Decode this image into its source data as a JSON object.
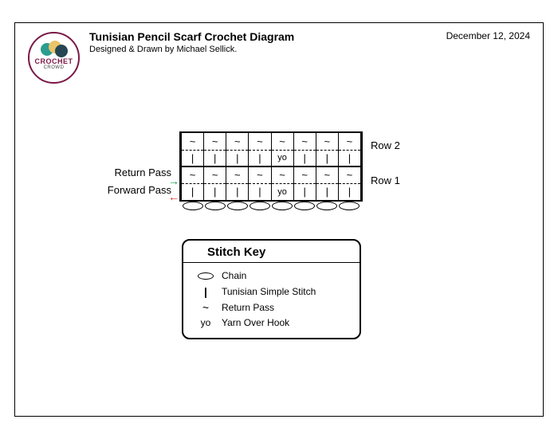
{
  "header": {
    "title": "Tunisian Pencil Scarf Crochet Diagram",
    "subtitle": "Designed & Drawn by Michael Sellick.",
    "date": "December 12, 2024"
  },
  "logo": {
    "text_top": "CROCHET",
    "text_bottom": "CROWD",
    "colors": {
      "ring": "#7a1846",
      "teal": "#2a9d8f",
      "yellow": "#e9c46a",
      "navy": "#264653"
    }
  },
  "diagram": {
    "columns": 8,
    "rows": [
      {
        "label": "Row 2",
        "return_pass": [
          "~",
          "~",
          "~",
          "~",
          "~",
          "~",
          "~",
          "~"
        ],
        "forward_pass": [
          "|",
          "|",
          "|",
          "|",
          "yo",
          "|",
          "|",
          "|"
        ]
      },
      {
        "label": "Row 1",
        "return_pass": [
          "~",
          "~",
          "~",
          "~",
          "~",
          "~",
          "~",
          "~"
        ],
        "forward_pass": [
          "|",
          "|",
          "|",
          "|",
          "yo",
          "|",
          "|",
          "|"
        ]
      }
    ],
    "left_labels": {
      "return": "Return Pass",
      "forward": "Forward Pass"
    },
    "arrows": {
      "return_color": "#1a9c4b",
      "forward_color": "#d62828"
    },
    "chain_count": 8
  },
  "key": {
    "title": "Stitch Key",
    "items": [
      {
        "symbol": "oval",
        "label": "Chain"
      },
      {
        "symbol": "|",
        "label": "Tunisian Simple Stitch"
      },
      {
        "symbol": "~",
        "label": "Return Pass"
      },
      {
        "symbol": "yo",
        "label": "Yarn Over Hook"
      }
    ]
  }
}
